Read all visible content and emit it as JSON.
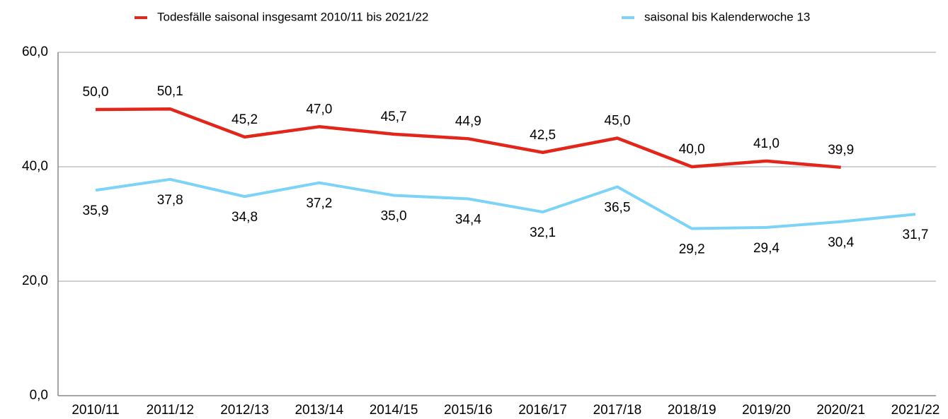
{
  "chart_data": {
    "type": "line",
    "categories": [
      "2010/11",
      "2011/12",
      "2012/13",
      "2013/14",
      "2014/15",
      "2015/16",
      "2016/17",
      "2017/18",
      "2018/19",
      "2019/20",
      "2020/21",
      "2021/22"
    ],
    "series": [
      {
        "name": "Todesfälle saisonal insgesamt 2010/11 bis 2021/22",
        "color": "#e3261b",
        "values": [
          50.0,
          50.1,
          45.2,
          47.0,
          45.7,
          44.9,
          42.5,
          45.0,
          40.0,
          41.0,
          39.9,
          null
        ],
        "value_labels": [
          "50,0",
          "50,1",
          "45,2",
          "47,0",
          "45,7",
          "44,9",
          "42,5",
          "45,0",
          "40,0",
          "41,0",
          "39,9",
          null
        ]
      },
      {
        "name": "saisonal bis Kalenderwoche 13",
        "color": "#7dd3f7",
        "values": [
          35.9,
          37.8,
          34.8,
          37.2,
          35.0,
          34.4,
          32.1,
          36.5,
          29.2,
          29.4,
          30.4,
          31.7
        ],
        "value_labels": [
          "35,9",
          "37,8",
          "34,8",
          "37,2",
          "35,0",
          "34,4",
          "32,1",
          "36,5",
          "29,2",
          "29,4",
          "30,4",
          "31,7"
        ]
      }
    ],
    "ylim": [
      0,
      60
    ],
    "yticks": [
      {
        "value": 0,
        "label": "0,0"
      },
      {
        "value": 20,
        "label": "20,0"
      },
      {
        "value": 40,
        "label": "40,0"
      },
      {
        "value": 60,
        "label": "60,0"
      }
    ],
    "grid": true
  }
}
